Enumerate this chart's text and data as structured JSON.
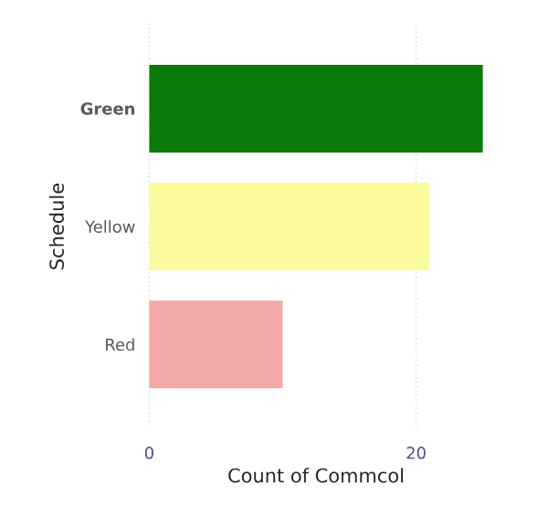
{
  "chart_data": {
    "type": "bar",
    "orientation": "horizontal",
    "xlabel": "Count of Commcol",
    "ylabel": "Schedule",
    "categories": [
      "Green",
      "Yellow",
      "Red"
    ],
    "values": [
      25,
      21,
      10
    ],
    "colors": [
      "#0a7a0a",
      "#fbfa9d",
      "#f4a9a9"
    ],
    "xlim": [
      0,
      25
    ],
    "xticks": [
      0,
      20
    ],
    "grid": "x"
  }
}
